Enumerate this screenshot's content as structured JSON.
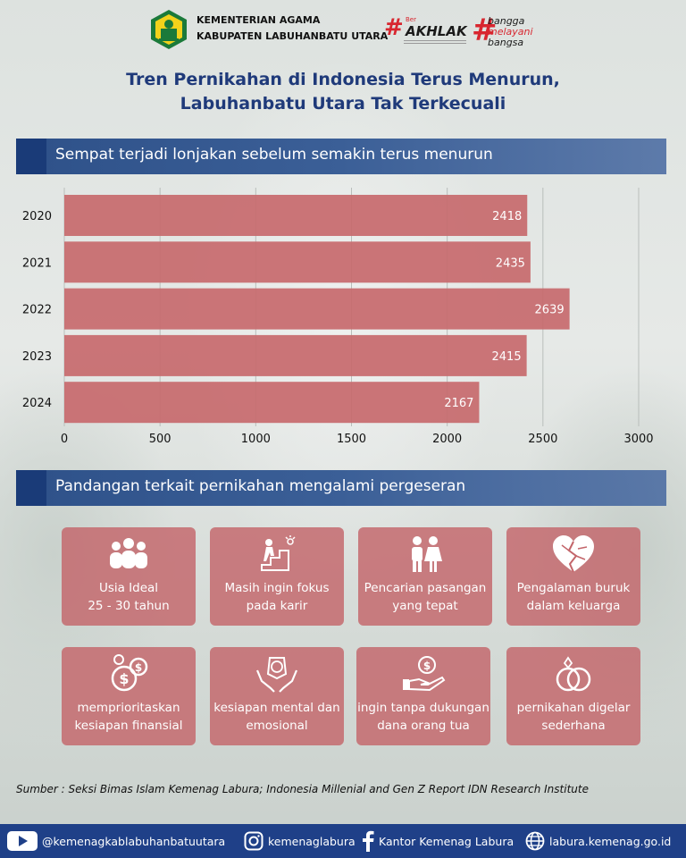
{
  "header": {
    "ministry_line1": "KEMENTERIAN AGAMA",
    "ministry_line2": "KABUPATEN LABUHANBATU UTARA",
    "akhlak_ber": "Ber",
    "akhlak_word": "AKHLAK",
    "bangga_l1": "bangga",
    "bangga_l2": "melayani",
    "bangga_l3": "bangsa"
  },
  "title_line1": "Tren Pernikahan di Indonesia Terus Menurun,",
  "title_line2": "Labuhanbatu Utara Tak Terkecuali",
  "section1": "Sempat terjadi lonjakan sebelum semakin terus menurun",
  "section2": "Pandangan terkait pernikahan mengalami pergeseran",
  "chart_data": {
    "type": "bar",
    "orientation": "horizontal",
    "categories": [
      "2020",
      "2021",
      "2022",
      "2023",
      "2024"
    ],
    "values": [
      2418,
      2435,
      2639,
      2415,
      2167
    ],
    "xlim": [
      0,
      3000
    ],
    "xticks": [
      0,
      500,
      1000,
      1500,
      2000,
      2500,
      3000
    ],
    "grid": true,
    "bar_color": "#c76b6e"
  },
  "cards": [
    {
      "icon": "people-icon",
      "line1": "Usia Ideal",
      "line2": "25 - 30 tahun"
    },
    {
      "icon": "career-stairs-icon",
      "line1": "Masih ingin fokus",
      "line2": "pada karir"
    },
    {
      "icon": "couple-icon",
      "line1": "Pencarian pasangan",
      "line2": "yang tepat"
    },
    {
      "icon": "broken-heart-icon",
      "line1": "Pengalaman buruk",
      "line2": "dalam keluarga"
    },
    {
      "icon": "coins-icon",
      "line1": "memprioritaskan",
      "line2": "kesiapan finansial"
    },
    {
      "icon": "brain-hands-icon",
      "line1": "kesiapan mental dan",
      "line2": "emosional"
    },
    {
      "icon": "money-hand-icon",
      "line1": "ingin tanpa dukungan",
      "line2": "dana orang tua"
    },
    {
      "icon": "rings-icon",
      "line1": "pernikahan digelar",
      "line2": "sederhana"
    }
  ],
  "source": "Sumber : Seksi Bimas Islam Kemenag Labura; Indonesia Millenial and Gen Z Report IDN Research Institute",
  "footer": {
    "youtube": "@kemenagkablabuhanbatuutara",
    "instagram": "kemenaglabura",
    "facebook": "Kantor Kemenag Labura",
    "website": "labura.kemenag.go.id"
  },
  "colors": {
    "title": "#1f3a7a",
    "banner": "#2e5189",
    "card": "#c3656a",
    "footer": "#1f4088",
    "accent_red": "#d8262f"
  }
}
